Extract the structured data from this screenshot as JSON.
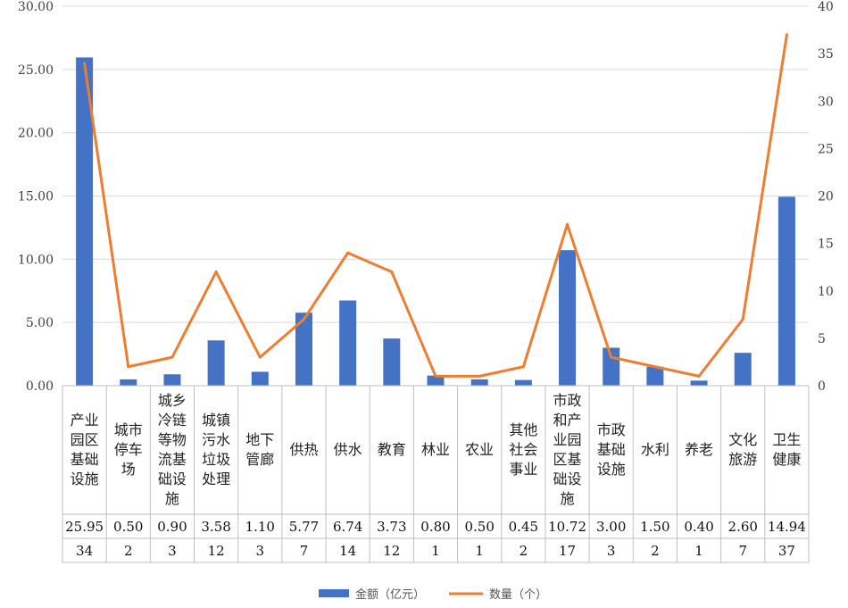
{
  "chart_data": {
    "type": "bar",
    "categories": [
      [
        "产业",
        "园区",
        "基础",
        "设施"
      ],
      [
        "城市",
        "停车",
        "场"
      ],
      [
        "城乡",
        "冷链",
        "等物",
        "流基",
        "础设",
        "施"
      ],
      [
        "城镇",
        "污水",
        "垃圾",
        "处理"
      ],
      [
        "地下",
        "管廊"
      ],
      [
        "供热"
      ],
      [
        "供水"
      ],
      [
        "教育"
      ],
      [
        "林业"
      ],
      [
        "农业"
      ],
      [
        "其他",
        "社会",
        "事业"
      ],
      [
        "市政",
        "和产",
        "业园",
        "区基",
        "础设",
        "施"
      ],
      [
        "市政",
        "基础",
        "设施"
      ],
      [
        "水利"
      ],
      [
        "养老"
      ],
      [
        "文化",
        "旅游"
      ],
      [
        "卫生",
        "健康"
      ]
    ],
    "series": [
      {
        "name": "金额（亿元）",
        "type": "bar",
        "axis": "left",
        "color": "#4472C4",
        "values": [
          25.95,
          0.5,
          0.9,
          3.58,
          1.1,
          5.77,
          6.74,
          3.73,
          0.8,
          0.5,
          0.45,
          10.72,
          3.0,
          1.5,
          0.4,
          2.6,
          14.94
        ],
        "labels": [
          "25.95",
          "0.50",
          "0.90",
          "3.58",
          "1.10",
          "5.77",
          "6.74",
          "3.73",
          "0.80",
          "0.50",
          "0.45",
          "10.72",
          "3.00",
          "1.50",
          "0.40",
          "2.60",
          "14.94"
        ]
      },
      {
        "name": "数量（个）",
        "type": "line",
        "axis": "right",
        "color": "#ED7D31",
        "values": [
          34,
          2,
          3,
          12,
          3,
          7,
          14,
          12,
          1,
          1,
          2,
          17,
          3,
          2,
          1,
          7,
          37
        ],
        "labels": [
          "34",
          "2",
          "3",
          "12",
          "3",
          "7",
          "14",
          "12",
          "1",
          "1",
          "2",
          "17",
          "3",
          "2",
          "1",
          "7",
          "37"
        ]
      }
    ],
    "y_left": {
      "min": 0,
      "max": 30,
      "step": 5,
      "tick_labels": [
        "0.00",
        "5.00",
        "10.00",
        "15.00",
        "20.00",
        "25.00",
        "30.00"
      ]
    },
    "y_right": {
      "min": 0,
      "max": 40,
      "step": 5,
      "tick_labels": [
        "0",
        "5",
        "10",
        "15",
        "20",
        "25",
        "30",
        "35",
        "40"
      ]
    },
    "grid": true,
    "legend_position": "bottom",
    "data_table": true
  }
}
